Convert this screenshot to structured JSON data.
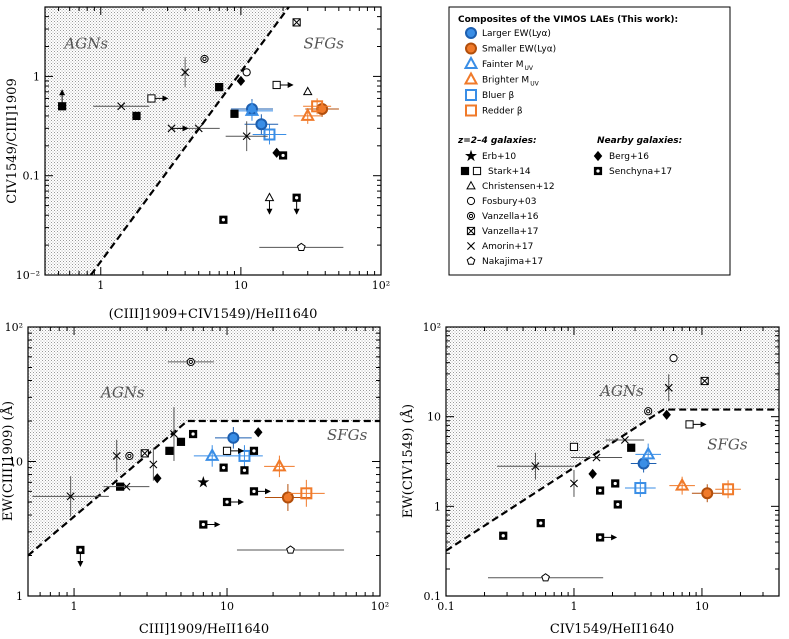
{
  "colors": {
    "blue": "#3a8ee6",
    "orange": "#f07a2a",
    "black": "#000000",
    "gray": "#888888"
  },
  "chart_data": [
    {
      "id": "top-left",
      "type": "scatter",
      "xlabel": "(CIII]1909+CIV1549)/HeII1640",
      "ylabel": "CIV1549/CIII]1909",
      "xscale": "log",
      "yscale": "log",
      "xlim": [
        0.4,
        100
      ],
      "ylim": [
        0.01,
        5
      ],
      "xticks": [
        {
          "v": 1,
          "label": "1"
        },
        {
          "v": 10,
          "label": "10"
        },
        {
          "v": 100,
          "label": "10²"
        }
      ],
      "yticks": [
        {
          "v": 0.01,
          "label": "10⁻²"
        },
        {
          "v": 0.1,
          "label": "0.1"
        },
        {
          "v": 1,
          "label": "1"
        }
      ],
      "boundary": [
        [
          0.85,
          0.01
        ],
        [
          22,
          5
        ]
      ],
      "shade_side": "left",
      "regions": [
        {
          "text": "AGNs",
          "x": 0.55,
          "y": 1.9
        },
        {
          "text": "SFGs",
          "x": 28,
          "y": 1.9
        }
      ],
      "points": [
        {
          "m": "larger",
          "x": 12,
          "y": 0.47,
          "xe": 0.15,
          "ye": 0.1
        },
        {
          "m": "smaller",
          "x": 38,
          "y": 0.47,
          "xe": 0.12,
          "ye": 0.08
        },
        {
          "m": "fainter",
          "x": 12,
          "y": 0.45,
          "xe": 0.15,
          "ye": 0.1
        },
        {
          "m": "brighter",
          "x": 30,
          "y": 0.4,
          "xe": 0.1,
          "ye": 0.08
        },
        {
          "m": "bluer",
          "x": 16,
          "y": 0.26,
          "xe": 0.12,
          "ye": 0.1
        },
        {
          "m": "redder",
          "x": 35,
          "y": 0.5,
          "xe": 0.1,
          "ye": 0.08
        },
        {
          "m": "larger",
          "x": 14,
          "y": 0.33,
          "xe": 0.12,
          "ye": 0.1
        },
        {
          "m": "starkf",
          "x": 0.53,
          "y": 0.5,
          "ar": "up"
        },
        {
          "m": "starkf",
          "x": 1.8,
          "y": 0.4
        },
        {
          "m": "starkf",
          "x": 7,
          "y": 0.78
        },
        {
          "m": "starkf",
          "x": 9,
          "y": 0.42
        },
        {
          "m": "stark",
          "x": 2.3,
          "y": 0.6,
          "ar": "right"
        },
        {
          "m": "stark",
          "x": 18,
          "y": 0.82,
          "ar": "right"
        },
        {
          "m": "sench",
          "x": 7.5,
          "y": 0.036
        },
        {
          "m": "sench",
          "x": 20,
          "y": 0.16
        },
        {
          "m": "sench",
          "x": 25,
          "y": 0.06,
          "ar": "down"
        },
        {
          "m": "vanz17",
          "x": 25,
          "y": 3.5
        },
        {
          "m": "vanz16",
          "x": 5.5,
          "y": 1.5
        },
        {
          "m": "fosb",
          "x": 11,
          "y": 1.1
        },
        {
          "m": "chris",
          "x": 30,
          "y": 0.7
        },
        {
          "m": "chris",
          "x": 16,
          "y": 0.06,
          "ar": "down"
        },
        {
          "m": "berg",
          "x": 18,
          "y": 0.17
        },
        {
          "m": "berg",
          "x": 10,
          "y": 0.9
        },
        {
          "m": "naka",
          "x": 27,
          "y": 0.019,
          "xe": 0.3
        },
        {
          "m": "amorin",
          "x": 1.4,
          "y": 0.5,
          "xe": 0.2
        },
        {
          "m": "amorin",
          "x": 4,
          "y": 1.1,
          "ye": 0.15
        },
        {
          "m": "amorin",
          "x": 5,
          "y": 0.3,
          "xe": 0.15
        },
        {
          "m": "amorin",
          "x": 11,
          "y": 0.25,
          "xe": 0.15,
          "ye": 0.15
        },
        {
          "m": "amorin",
          "x": 3.2,
          "y": 0.3,
          "ar": "right"
        }
      ]
    },
    {
      "id": "bottom-left",
      "type": "scatter",
      "xlabel": "CIII]1909/HeII1640",
      "ylabel": "EW(CIII]1909) (Å)",
      "xscale": "log",
      "yscale": "log",
      "xlim": [
        0.5,
        100
      ],
      "ylim": [
        1,
        100
      ],
      "xticks": [
        {
          "v": 1,
          "label": "1"
        },
        {
          "v": 10,
          "label": "10"
        },
        {
          "v": 100,
          "label": "10²"
        }
      ],
      "yticks": [
        {
          "v": 1,
          "label": "1"
        },
        {
          "v": 10,
          "label": "10"
        },
        {
          "v": 100,
          "label": "10²"
        }
      ],
      "boundary": [
        [
          0.5,
          2.0
        ],
        [
          5.5,
          20
        ],
        [
          100,
          20
        ]
      ],
      "shade_side": "above",
      "regions": [
        {
          "text": "AGNs",
          "x": 1.5,
          "y": 30
        },
        {
          "text": "SFGs",
          "x": 45,
          "y": 14.5
        }
      ],
      "points": [
        {
          "m": "larger",
          "x": 11,
          "y": 15,
          "xe": 0.12,
          "ye": 0.08
        },
        {
          "m": "smaller",
          "x": 25,
          "y": 5.4,
          "xe": 0.15,
          "ye": 0.1
        },
        {
          "m": "fainter",
          "x": 8,
          "y": 11,
          "xe": 0.12,
          "ye": 0.08
        },
        {
          "m": "brighter",
          "x": 22,
          "y": 9.2,
          "xe": 0.1,
          "ye": 0.08
        },
        {
          "m": "bluer",
          "x": 13,
          "y": 11,
          "xe": 0.12,
          "ye": 0.08
        },
        {
          "m": "redder",
          "x": 33,
          "y": 5.8,
          "xe": 0.12,
          "ye": 0.1
        },
        {
          "m": "erb",
          "x": 7,
          "y": 7
        },
        {
          "m": "starkf",
          "x": 2,
          "y": 6.5
        },
        {
          "m": "starkf",
          "x": 4.2,
          "y": 12
        },
        {
          "m": "starkf",
          "x": 5,
          "y": 14
        },
        {
          "m": "stark",
          "x": 10,
          "y": 12,
          "ar": "right"
        },
        {
          "m": "sench",
          "x": 1.1,
          "y": 2.2,
          "ar": "down"
        },
        {
          "m": "sench",
          "x": 7,
          "y": 3.4,
          "ar": "right"
        },
        {
          "m": "sench",
          "x": 10,
          "y": 5,
          "ar": "right"
        },
        {
          "m": "sench",
          "x": 15,
          "y": 12
        },
        {
          "m": "sench",
          "x": 15,
          "y": 6,
          "ar": "right"
        },
        {
          "m": "sench",
          "x": 13,
          "y": 8.6
        },
        {
          "m": "sench",
          "x": 9.5,
          "y": 9
        },
        {
          "m": "sench",
          "x": 6,
          "y": 16
        },
        {
          "m": "berg",
          "x": 16,
          "y": 16.5
        },
        {
          "m": "berg",
          "x": 3.5,
          "y": 7.5
        },
        {
          "m": "vanz16",
          "x": 5.8,
          "y": 55,
          "xe": 0.15
        },
        {
          "m": "vanz16",
          "x": 2.3,
          "y": 11
        },
        {
          "m": "vanz17",
          "x": 2.9,
          "y": 11.5
        },
        {
          "m": "naka",
          "x": 26,
          "y": 2.2,
          "xe": 0.35
        },
        {
          "m": "amorin",
          "x": 0.95,
          "y": 5.5,
          "xe": 0.25,
          "ye": 0.15
        },
        {
          "m": "amorin",
          "x": 2.2,
          "y": 6.5,
          "xe": 0.15
        },
        {
          "m": "amorin",
          "x": 3.3,
          "y": 9.5,
          "ye": 0.12
        },
        {
          "m": "amorin",
          "x": 4.5,
          "y": 16,
          "ye": 0.2
        },
        {
          "m": "amorin",
          "x": 1.9,
          "y": 11,
          "ye": 0.12
        }
      ]
    },
    {
      "id": "bottom-right",
      "type": "scatter",
      "xlabel": "CIV1549/HeII1640",
      "ylabel": "EW(CIV1549) (Å)",
      "xscale": "log",
      "yscale": "log",
      "xlim": [
        0.1,
        40
      ],
      "ylim": [
        0.1,
        100
      ],
      "xticks": [
        {
          "v": 0.1,
          "label": "0.1"
        },
        {
          "v": 1,
          "label": "1"
        },
        {
          "v": 10,
          "label": "10"
        }
      ],
      "yticks": [
        {
          "v": 0.1,
          "label": "0.1"
        },
        {
          "v": 1,
          "label": "1"
        },
        {
          "v": 10,
          "label": "10"
        },
        {
          "v": 100,
          "label": "10²"
        }
      ],
      "boundary": [
        [
          0.1,
          0.32
        ],
        [
          5,
          12
        ],
        [
          40,
          12
        ]
      ],
      "shade_side": "above",
      "regions": [
        {
          "text": "AGNs",
          "x": 1.6,
          "y": 17
        },
        {
          "text": "SFGs",
          "x": 11,
          "y": 4.3
        }
      ],
      "points": [
        {
          "m": "larger",
          "x": 3.5,
          "y": 3,
          "xe": 0.1,
          "ye": 0.1
        },
        {
          "m": "smaller",
          "x": 11,
          "y": 1.4,
          "xe": 0.12,
          "ye": 0.1
        },
        {
          "m": "fainter",
          "x": 3.8,
          "y": 3.8,
          "xe": 0.1,
          "ye": 0.12
        },
        {
          "m": "brighter",
          "x": 7,
          "y": 1.7,
          "xe": 0.1,
          "ye": 0.1
        },
        {
          "m": "bluer",
          "x": 3.3,
          "y": 1.6,
          "xe": 0.12,
          "ye": 0.1
        },
        {
          "m": "redder",
          "x": 16,
          "y": 1.55,
          "xe": 0.1,
          "ye": 0.1
        },
        {
          "m": "starkf",
          "x": 2.8,
          "y": 4.5
        },
        {
          "m": "stark",
          "x": 1,
          "y": 4.6
        },
        {
          "m": "stark",
          "x": 8,
          "y": 8.2,
          "ar": "right"
        },
        {
          "m": "sench",
          "x": 0.28,
          "y": 0.47
        },
        {
          "m": "sench",
          "x": 0.55,
          "y": 0.65
        },
        {
          "m": "sench",
          "x": 1.6,
          "y": 0.45,
          "ar": "right"
        },
        {
          "m": "sench",
          "x": 1.6,
          "y": 1.5
        },
        {
          "m": "sench",
          "x": 2.2,
          "y": 1.05
        },
        {
          "m": "sench",
          "x": 2.1,
          "y": 1.8
        },
        {
          "m": "berg",
          "x": 5.3,
          "y": 10.5
        },
        {
          "m": "berg",
          "x": 1.4,
          "y": 2.3
        },
        {
          "m": "fosb",
          "x": 6,
          "y": 45
        },
        {
          "m": "vanz17",
          "x": 10.5,
          "y": 25
        },
        {
          "m": "vanz16",
          "x": 3.8,
          "y": 11.5
        },
        {
          "m": "naka",
          "x": 0.6,
          "y": 0.16,
          "xe": 0.45
        },
        {
          "m": "amorin",
          "x": 0.5,
          "y": 2.8,
          "xe": 0.3,
          "ye": 0.15
        },
        {
          "m": "amorin",
          "x": 1,
          "y": 1.8,
          "ye": 0.15
        },
        {
          "m": "amorin",
          "x": 1.5,
          "y": 3.5,
          "xe": 0.2
        },
        {
          "m": "amorin",
          "x": 5.5,
          "y": 21,
          "ye": 0.15
        },
        {
          "m": "amorin",
          "x": 2.5,
          "y": 5.5,
          "xe": 0.15
        }
      ]
    }
  ],
  "legend": {
    "title": "Composites of the VIMOS LAEs (This work):",
    "composites": [
      {
        "marker": "larger",
        "label": "Larger EW(Lyα)"
      },
      {
        "marker": "smaller",
        "label": "Smaller EW(Lyα)"
      },
      {
        "marker": "fainter",
        "label": "Fainter M"
      },
      {
        "marker": "brighter",
        "label": "Brighter M"
      },
      {
        "marker": "bluer",
        "label": "Bluer β"
      },
      {
        "marker": "redder",
        "label": "Redder β"
      }
    ],
    "uv_sub": "UV",
    "highz_title": "z=2–4 galaxies:",
    "nearby_title": "Nearby galaxies:",
    "highz": [
      {
        "marker": "erb",
        "label": "Erb+10"
      },
      {
        "marker": "stark",
        "label": "Stark+14"
      },
      {
        "marker": "chris",
        "label": "Christensen+12"
      },
      {
        "marker": "fosb",
        "label": "Fosbury+03"
      },
      {
        "marker": "vanz16",
        "label": "Vanzella+16"
      },
      {
        "marker": "vanz17",
        "label": "Vanzella+17"
      },
      {
        "marker": "amorin",
        "label": "Amorin+17"
      },
      {
        "marker": "naka",
        "label": "Nakajima+17"
      }
    ],
    "nearby": [
      {
        "marker": "berg",
        "label": "Berg+16"
      },
      {
        "marker": "sench",
        "label": "Senchyna+17"
      }
    ]
  }
}
